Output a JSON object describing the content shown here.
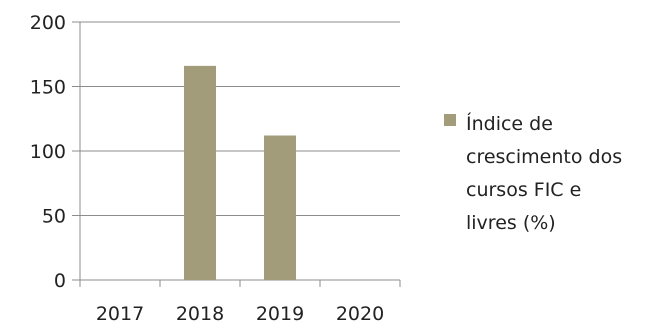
{
  "chart_data": {
    "type": "bar",
    "categories": [
      "2017",
      "2018",
      "2019",
      "2020"
    ],
    "series": [
      {
        "name": "Índice de crescimento dos cursos FIC e livres (%)",
        "values": [
          0,
          166,
          112,
          0
        ],
        "color": "#a39c7a"
      }
    ],
    "ylim": [
      0,
      200
    ],
    "yticks": [
      0,
      50,
      100,
      150,
      200
    ],
    "grid": true,
    "legend": {
      "position": "right",
      "lines": [
        "Índice de",
        "crescimento dos",
        "cursos FIC e",
        "livres (%)"
      ]
    }
  }
}
